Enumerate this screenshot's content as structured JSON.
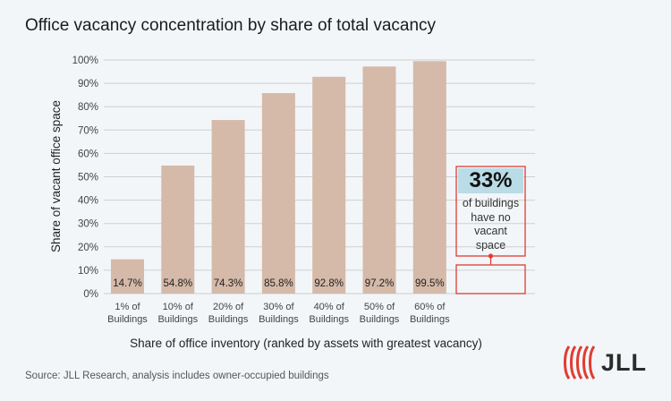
{
  "header": {
    "title": "Office vacancy concentration by share of total vacancy"
  },
  "chart_data": {
    "type": "bar",
    "title": "Office vacancy concentration by share of total vacancy",
    "xlabel": "Share of office inventory (ranked by assets with greatest vacancy)",
    "ylabel": "Share of vacant office space",
    "categories": [
      [
        "1% of",
        "Buildings"
      ],
      [
        "10% of",
        "Buildings"
      ],
      [
        "20% of",
        "Buildings"
      ],
      [
        "30% of",
        "Buildings"
      ],
      [
        "40% of",
        "Buildings"
      ],
      [
        "50% of",
        "Buildings"
      ],
      [
        "60% of",
        "Buildings"
      ]
    ],
    "values": [
      14.7,
      54.8,
      74.3,
      85.8,
      92.8,
      97.2,
      99.5
    ],
    "value_labels": [
      "14.7%",
      "54.8%",
      "74.3%",
      "85.8%",
      "92.8%",
      "97.2%",
      "99.5%"
    ],
    "ylim": [
      0,
      100
    ],
    "yticks": [
      "0%",
      "10%",
      "20%",
      "30%",
      "40%",
      "50%",
      "60%",
      "70%",
      "80%",
      "90%",
      "100%"
    ],
    "grid": true,
    "bar_color": "#d5b9a9",
    "gridline_color": "#cfcfcf"
  },
  "callout": {
    "value": "33%",
    "lines": [
      "of buildings",
      "have no",
      "vacant",
      "space"
    ],
    "border_color": "#e03c31",
    "value_bg": "#b9dce6"
  },
  "footer": {
    "source": "Source: JLL Research, analysis includes owner-occupied buildings"
  },
  "logo": {
    "text": "JLL",
    "color": "#e03c31"
  }
}
